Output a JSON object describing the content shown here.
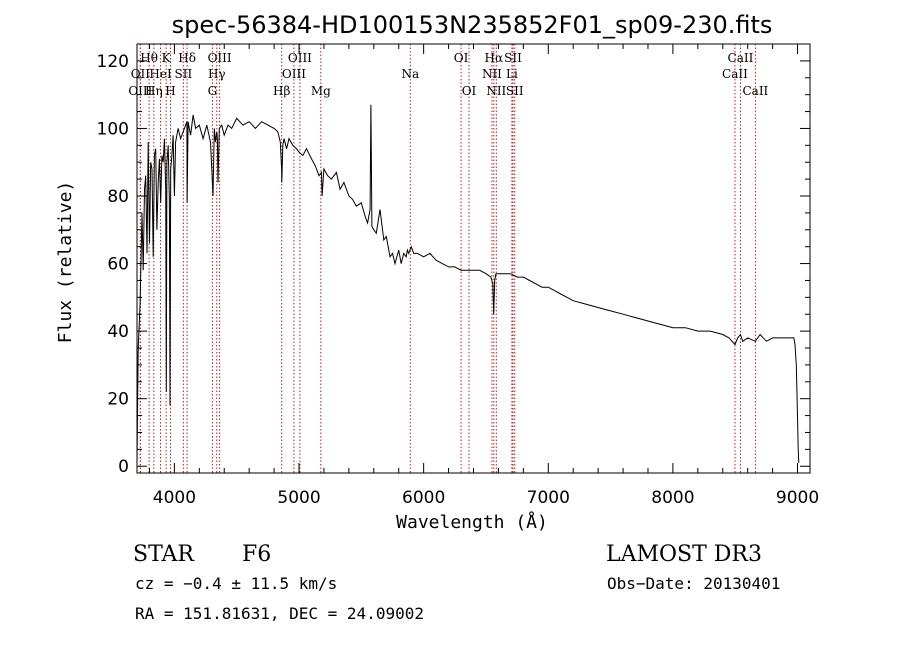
{
  "chart_data": {
    "type": "line",
    "title": "spec-56384-HD100153N235852F01_sp09-230.fits",
    "xlabel": "Wavelength (Å)",
    "ylabel": "Flux (relative)",
    "xlim": [
      3700,
      9100
    ],
    "ylim": [
      -2,
      125
    ],
    "xticks": [
      4000,
      5000,
      6000,
      7000,
      8000,
      9000
    ],
    "yticks": [
      0,
      20,
      40,
      60,
      80,
      100,
      120
    ],
    "series": [
      {
        "name": "spectrum",
        "x": [
          3700,
          3710,
          3725,
          3740,
          3750,
          3760,
          3770,
          3780,
          3790,
          3800,
          3810,
          3820,
          3830,
          3840,
          3850,
          3860,
          3870,
          3880,
          3890,
          3900,
          3910,
          3920,
          3930,
          3935,
          3940,
          3950,
          3960,
          3965,
          3970,
          3980,
          3990,
          4000,
          4010,
          4030,
          4050,
          4080,
          4100,
          4102,
          4110,
          4130,
          4150,
          4170,
          4200,
          4230,
          4260,
          4290,
          4310,
          4320,
          4330,
          4340,
          4345,
          4350,
          4360,
          4380,
          4400,
          4430,
          4460,
          4500,
          4550,
          4600,
          4650,
          4700,
          4750,
          4800,
          4830,
          4850,
          4860,
          4862,
          4870,
          4880,
          4900,
          4920,
          4950,
          4980,
          5000,
          5030,
          5060,
          5100,
          5130,
          5160,
          5180,
          5185,
          5200,
          5230,
          5260,
          5300,
          5330,
          5360,
          5400,
          5430,
          5460,
          5500,
          5530,
          5550,
          5570,
          5577,
          5585,
          5600,
          5620,
          5650,
          5680,
          5700,
          5730,
          5750,
          5770,
          5800,
          5820,
          5840,
          5860,
          5870,
          5880,
          5900,
          5920,
          5950,
          6000,
          6050,
          6100,
          6150,
          6200,
          6250,
          6300,
          6350,
          6400,
          6450,
          6500,
          6540,
          6555,
          6562,
          6570,
          6580,
          6600,
          6650,
          6700,
          6750,
          6800,
          6850,
          6900,
          6950,
          7000,
          7050,
          7100,
          7150,
          7200,
          7300,
          7400,
          7500,
          7600,
          7700,
          7800,
          7900,
          8000,
          8100,
          8200,
          8300,
          8400,
          8450,
          8498,
          8520,
          8542,
          8560,
          8600,
          8662,
          8680,
          8700,
          8750,
          8800,
          8850,
          8900,
          8950,
          8970,
          8980,
          8990,
          9000,
          9005,
          9010
        ],
        "y": [
          1,
          35,
          48,
          75,
          58,
          82,
          86,
          63,
          96,
          66,
          90,
          88,
          62,
          92,
          94,
          70,
          84,
          91,
          78,
          92,
          90,
          97,
          82,
          22,
          90,
          95,
          78,
          18,
          88,
          92,
          98,
          80,
          96,
          100,
          97,
          100,
          102,
          78,
          102,
          98,
          104,
          100,
          101,
          97,
          101,
          96,
          80,
          100,
          96,
          99,
          97,
          84,
          100,
          101,
          98,
          101,
          100,
          103,
          101,
          102,
          100,
          102,
          101,
          100,
          99,
          96,
          88,
          84,
          95,
          97,
          94,
          97,
          95,
          94,
          93,
          92,
          94,
          91,
          89,
          86,
          87,
          80,
          88,
          86,
          85,
          87,
          82,
          84,
          80,
          79,
          77,
          78,
          74,
          72,
          76,
          107,
          71,
          70,
          69,
          76,
          67,
          68,
          62,
          63,
          60,
          64,
          60,
          63,
          62,
          64,
          63,
          65,
          63,
          63,
          62,
          63,
          61,
          60,
          59,
          59,
          58,
          58,
          58,
          58,
          57,
          56,
          54,
          45,
          55,
          57,
          57,
          57,
          57,
          56,
          56,
          55,
          54,
          53,
          53,
          52,
          51,
          50,
          49,
          48,
          47,
          46,
          45,
          44,
          43,
          42,
          41,
          41,
          40,
          40,
          39,
          38,
          36,
          38,
          39,
          37,
          38,
          37,
          38,
          39,
          37,
          38,
          38,
          38,
          38,
          38,
          36,
          30,
          15,
          5,
          1
        ]
      }
    ],
    "line_labels": [
      {
        "label": "Hθ",
        "x": 3797,
        "row": 1
      },
      {
        "label": "OII",
        "x": 3727,
        "row": 2
      },
      {
        "label": "OIII",
        "x": 3727,
        "row": 3
      },
      {
        "label": "Hη",
        "x": 3835,
        "row": 3
      },
      {
        "label": "K",
        "x": 3934,
        "row": 1
      },
      {
        "label": "HeI",
        "x": 3889,
        "row": 2
      },
      {
        "label": "H",
        "x": 3969,
        "row": 3
      },
      {
        "label": "Hδ",
        "x": 4102,
        "row": 1
      },
      {
        "label": "SII",
        "x": 4072,
        "row": 2
      },
      {
        "label": "OIII",
        "x": 4363,
        "row": 1
      },
      {
        "label": "Hγ",
        "x": 4340,
        "row": 2
      },
      {
        "label": "G",
        "x": 4305,
        "row": 3
      },
      {
        "label": "OIII",
        "x": 5007,
        "row": 1
      },
      {
        "label": "OIII",
        "x": 4959,
        "row": 2
      },
      {
        "label": "Hβ",
        "x": 4861,
        "row": 3
      },
      {
        "label": "Mg",
        "x": 5175,
        "row": 3
      },
      {
        "label": "Na",
        "x": 5893,
        "row": 2
      },
      {
        "label": "OI",
        "x": 6300,
        "row": 1
      },
      {
        "label": "OI",
        "x": 6364,
        "row": 3
      },
      {
        "label": "Hα",
        "x": 6563,
        "row": 1
      },
      {
        "label": "SII",
        "x": 6717,
        "row": 1
      },
      {
        "label": "NII",
        "x": 6548,
        "row": 2
      },
      {
        "label": "Li",
        "x": 6708,
        "row": 2
      },
      {
        "label": "NII",
        "x": 6583,
        "row": 3
      },
      {
        "label": "SII",
        "x": 6731,
        "row": 3
      },
      {
        "label": "CaII",
        "x": 8542,
        "row": 1
      },
      {
        "label": "CaII",
        "x": 8498,
        "row": 2
      },
      {
        "label": "CaII",
        "x": 8662,
        "row": 3
      }
    ],
    "line_color": "#b22222"
  },
  "footer": {
    "class_label": "STAR",
    "subclass": "F6",
    "survey": "LAMOST DR3",
    "cz": "cz = −0.4 ± 11.5 km/s",
    "obs_date": "Obs−Date: 20130401",
    "radec": "RA = 151.81631, DEC =  24.09002"
  }
}
